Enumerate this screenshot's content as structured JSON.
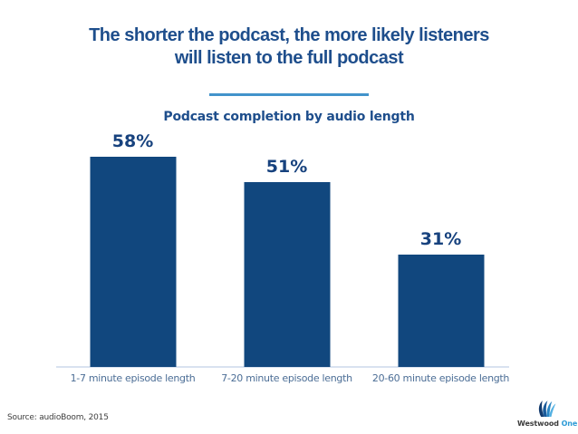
{
  "slide": {
    "title_lines": [
      "The shorter the podcast, the more likely listeners",
      "will listen to the full podcast"
    ],
    "source": "Source: audioBoom, 2015",
    "logo": {
      "brand": "Westwood",
      "brand_accent": "One"
    }
  },
  "chart_data": {
    "type": "bar",
    "title": "Podcast completion by audio length",
    "categories": [
      "1-7 minute episode length",
      "7-20 minute episode length",
      "20-60 minute episode length"
    ],
    "values": [
      58,
      51,
      31
    ],
    "value_labels": [
      "58%",
      "51%",
      "31%"
    ],
    "ylabel": "",
    "xlabel": "",
    "ylim": [
      0,
      60
    ],
    "grid": false,
    "legend": false
  },
  "colors": {
    "background": "#FFFFFF",
    "title": "#1E4E8C",
    "divider": "#4293CB",
    "subtitle": "#1E4E8C",
    "bar_color": "#11477E",
    "value_label": "#17427E",
    "category_label": "#4C6E96",
    "axis_line": "#D9E2F0",
    "source": "#3F3F3F",
    "logo_text": "#3B3B3B",
    "logo_accent": "#2E9BD6"
  }
}
